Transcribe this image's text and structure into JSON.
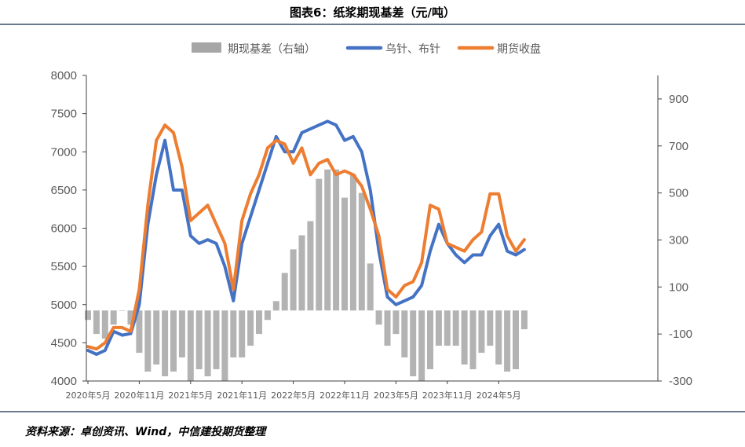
{
  "title": "图表6：纸浆期现基差（元/吨）",
  "source": "资料来源：卓创资讯、Wind，中信建投期货整理",
  "colors": {
    "basis": "#a6a6a6",
    "spot": "#4472c4",
    "futures": "#ed7d31"
  },
  "chart_data": {
    "type": "line",
    "x_ticks": [
      "2020年5月",
      "2020年11月",
      "2021年5月",
      "2021年11月",
      "2022年5月",
      "2022年11月",
      "2023年5月",
      "2023年11月",
      "2024年5月"
    ],
    "left_axis": {
      "ylim": [
        4000,
        8000
      ],
      "ticks": [
        4000,
        4500,
        5000,
        5500,
        6000,
        6500,
        7000,
        7500,
        8000
      ]
    },
    "right_axis": {
      "ylim": [
        -300,
        1000
      ],
      "ticks": [
        -300,
        -100,
        100,
        300,
        500,
        700,
        900
      ]
    },
    "legend_position": "top",
    "grid": false,
    "series": [
      {
        "name": "期现基差（右轴）",
        "type": "bar",
        "axis": "right",
        "x": [
          "2020-05",
          "2020-06",
          "2020-07",
          "2020-08",
          "2020-09",
          "2020-10",
          "2020-11",
          "2020-12",
          "2021-01",
          "2021-02",
          "2021-03",
          "2021-04",
          "2021-05",
          "2021-06",
          "2021-07",
          "2021-08",
          "2021-09",
          "2021-10",
          "2021-11",
          "2021-12",
          "2022-01",
          "2022-02",
          "2022-03",
          "2022-04",
          "2022-05",
          "2022-06",
          "2022-07",
          "2022-08",
          "2022-09",
          "2022-10",
          "2022-11",
          "2022-12",
          "2023-01",
          "2023-02",
          "2023-03",
          "2023-04",
          "2023-05",
          "2023-06",
          "2023-07",
          "2023-08",
          "2023-09",
          "2023-10",
          "2023-11",
          "2023-12",
          "2024-01",
          "2024-02",
          "2024-03",
          "2024-04",
          "2024-05",
          "2024-06",
          "2024-07",
          "2024-08"
        ],
        "values": [
          -40,
          -100,
          -120,
          -60,
          0,
          -60,
          -180,
          -260,
          -230,
          -280,
          -260,
          -200,
          -300,
          -250,
          -280,
          -250,
          -300,
          -200,
          -200,
          -150,
          -100,
          -40,
          40,
          160,
          260,
          320,
          380,
          560,
          600,
          600,
          480,
          580,
          500,
          200,
          -60,
          -150,
          -100,
          -200,
          -280,
          -300,
          -250,
          -150,
          -150,
          -150,
          -230,
          -250,
          -180,
          -150,
          -230,
          -260,
          -250,
          -80
        ]
      },
      {
        "name": "乌针、布针",
        "type": "line",
        "axis": "left",
        "x": [
          "2020-05",
          "2020-06",
          "2020-07",
          "2020-08",
          "2020-09",
          "2020-10",
          "2020-11",
          "2020-12",
          "2021-01",
          "2021-02",
          "2021-03",
          "2021-04",
          "2021-05",
          "2021-06",
          "2021-07",
          "2021-08",
          "2021-09",
          "2021-10",
          "2021-11",
          "2021-12",
          "2022-01",
          "2022-02",
          "2022-03",
          "2022-04",
          "2022-05",
          "2022-06",
          "2022-07",
          "2022-08",
          "2022-09",
          "2022-10",
          "2022-11",
          "2022-12",
          "2023-01",
          "2023-02",
          "2023-03",
          "2023-04",
          "2023-05",
          "2023-06",
          "2023-07",
          "2023-08",
          "2023-09",
          "2023-10",
          "2023-11",
          "2023-12",
          "2024-01",
          "2024-02",
          "2024-03",
          "2024-04",
          "2024-05",
          "2024-06",
          "2024-07",
          "2024-08"
        ],
        "values": [
          4400,
          4350,
          4400,
          4650,
          4600,
          4620,
          5000,
          6050,
          6700,
          7150,
          6500,
          6500,
          5900,
          5800,
          5850,
          5800,
          5500,
          5050,
          5800,
          6150,
          6500,
          6850,
          7200,
          7000,
          7000,
          7250,
          7300,
          7350,
          7400,
          7350,
          7150,
          7200,
          7000,
          6500,
          5700,
          5100,
          5000,
          5050,
          5100,
          5250,
          5700,
          6050,
          5800,
          5650,
          5550,
          5650,
          5650,
          5900,
          6050,
          5700,
          5650,
          5720
        ]
      },
      {
        "name": "期货收盘",
        "type": "line",
        "axis": "left",
        "x": [
          "2020-05",
          "2020-06",
          "2020-07",
          "2020-08",
          "2020-09",
          "2020-10",
          "2020-11",
          "2020-12",
          "2021-01",
          "2021-02",
          "2021-03",
          "2021-04",
          "2021-05",
          "2021-06",
          "2021-07",
          "2021-08",
          "2021-09",
          "2021-10",
          "2021-11",
          "2021-12",
          "2022-01",
          "2022-02",
          "2022-03",
          "2022-04",
          "2022-05",
          "2022-06",
          "2022-07",
          "2022-08",
          "2022-09",
          "2022-10",
          "2022-11",
          "2022-12",
          "2023-01",
          "2023-02",
          "2023-03",
          "2023-04",
          "2023-05",
          "2023-06",
          "2023-07",
          "2023-08",
          "2023-09",
          "2023-10",
          "2023-11",
          "2023-12",
          "2024-01",
          "2024-02",
          "2024-03",
          "2024-04",
          "2024-05",
          "2024-06",
          "2024-07",
          "2024-08"
        ],
        "values": [
          4450,
          4420,
          4500,
          4700,
          4700,
          4650,
          5200,
          6300,
          7150,
          7350,
          7250,
          6800,
          6100,
          6200,
          6300,
          6050,
          5800,
          5200,
          6100,
          6450,
          6700,
          7050,
          7150,
          7100,
          6850,
          7050,
          6700,
          6850,
          6900,
          6700,
          6750,
          6700,
          6550,
          6250,
          5900,
          5200,
          5100,
          5250,
          5300,
          5550,
          6300,
          6250,
          5800,
          5750,
          5700,
          5850,
          5950,
          6450,
          6450,
          5900,
          5700,
          5850
        ]
      }
    ]
  }
}
